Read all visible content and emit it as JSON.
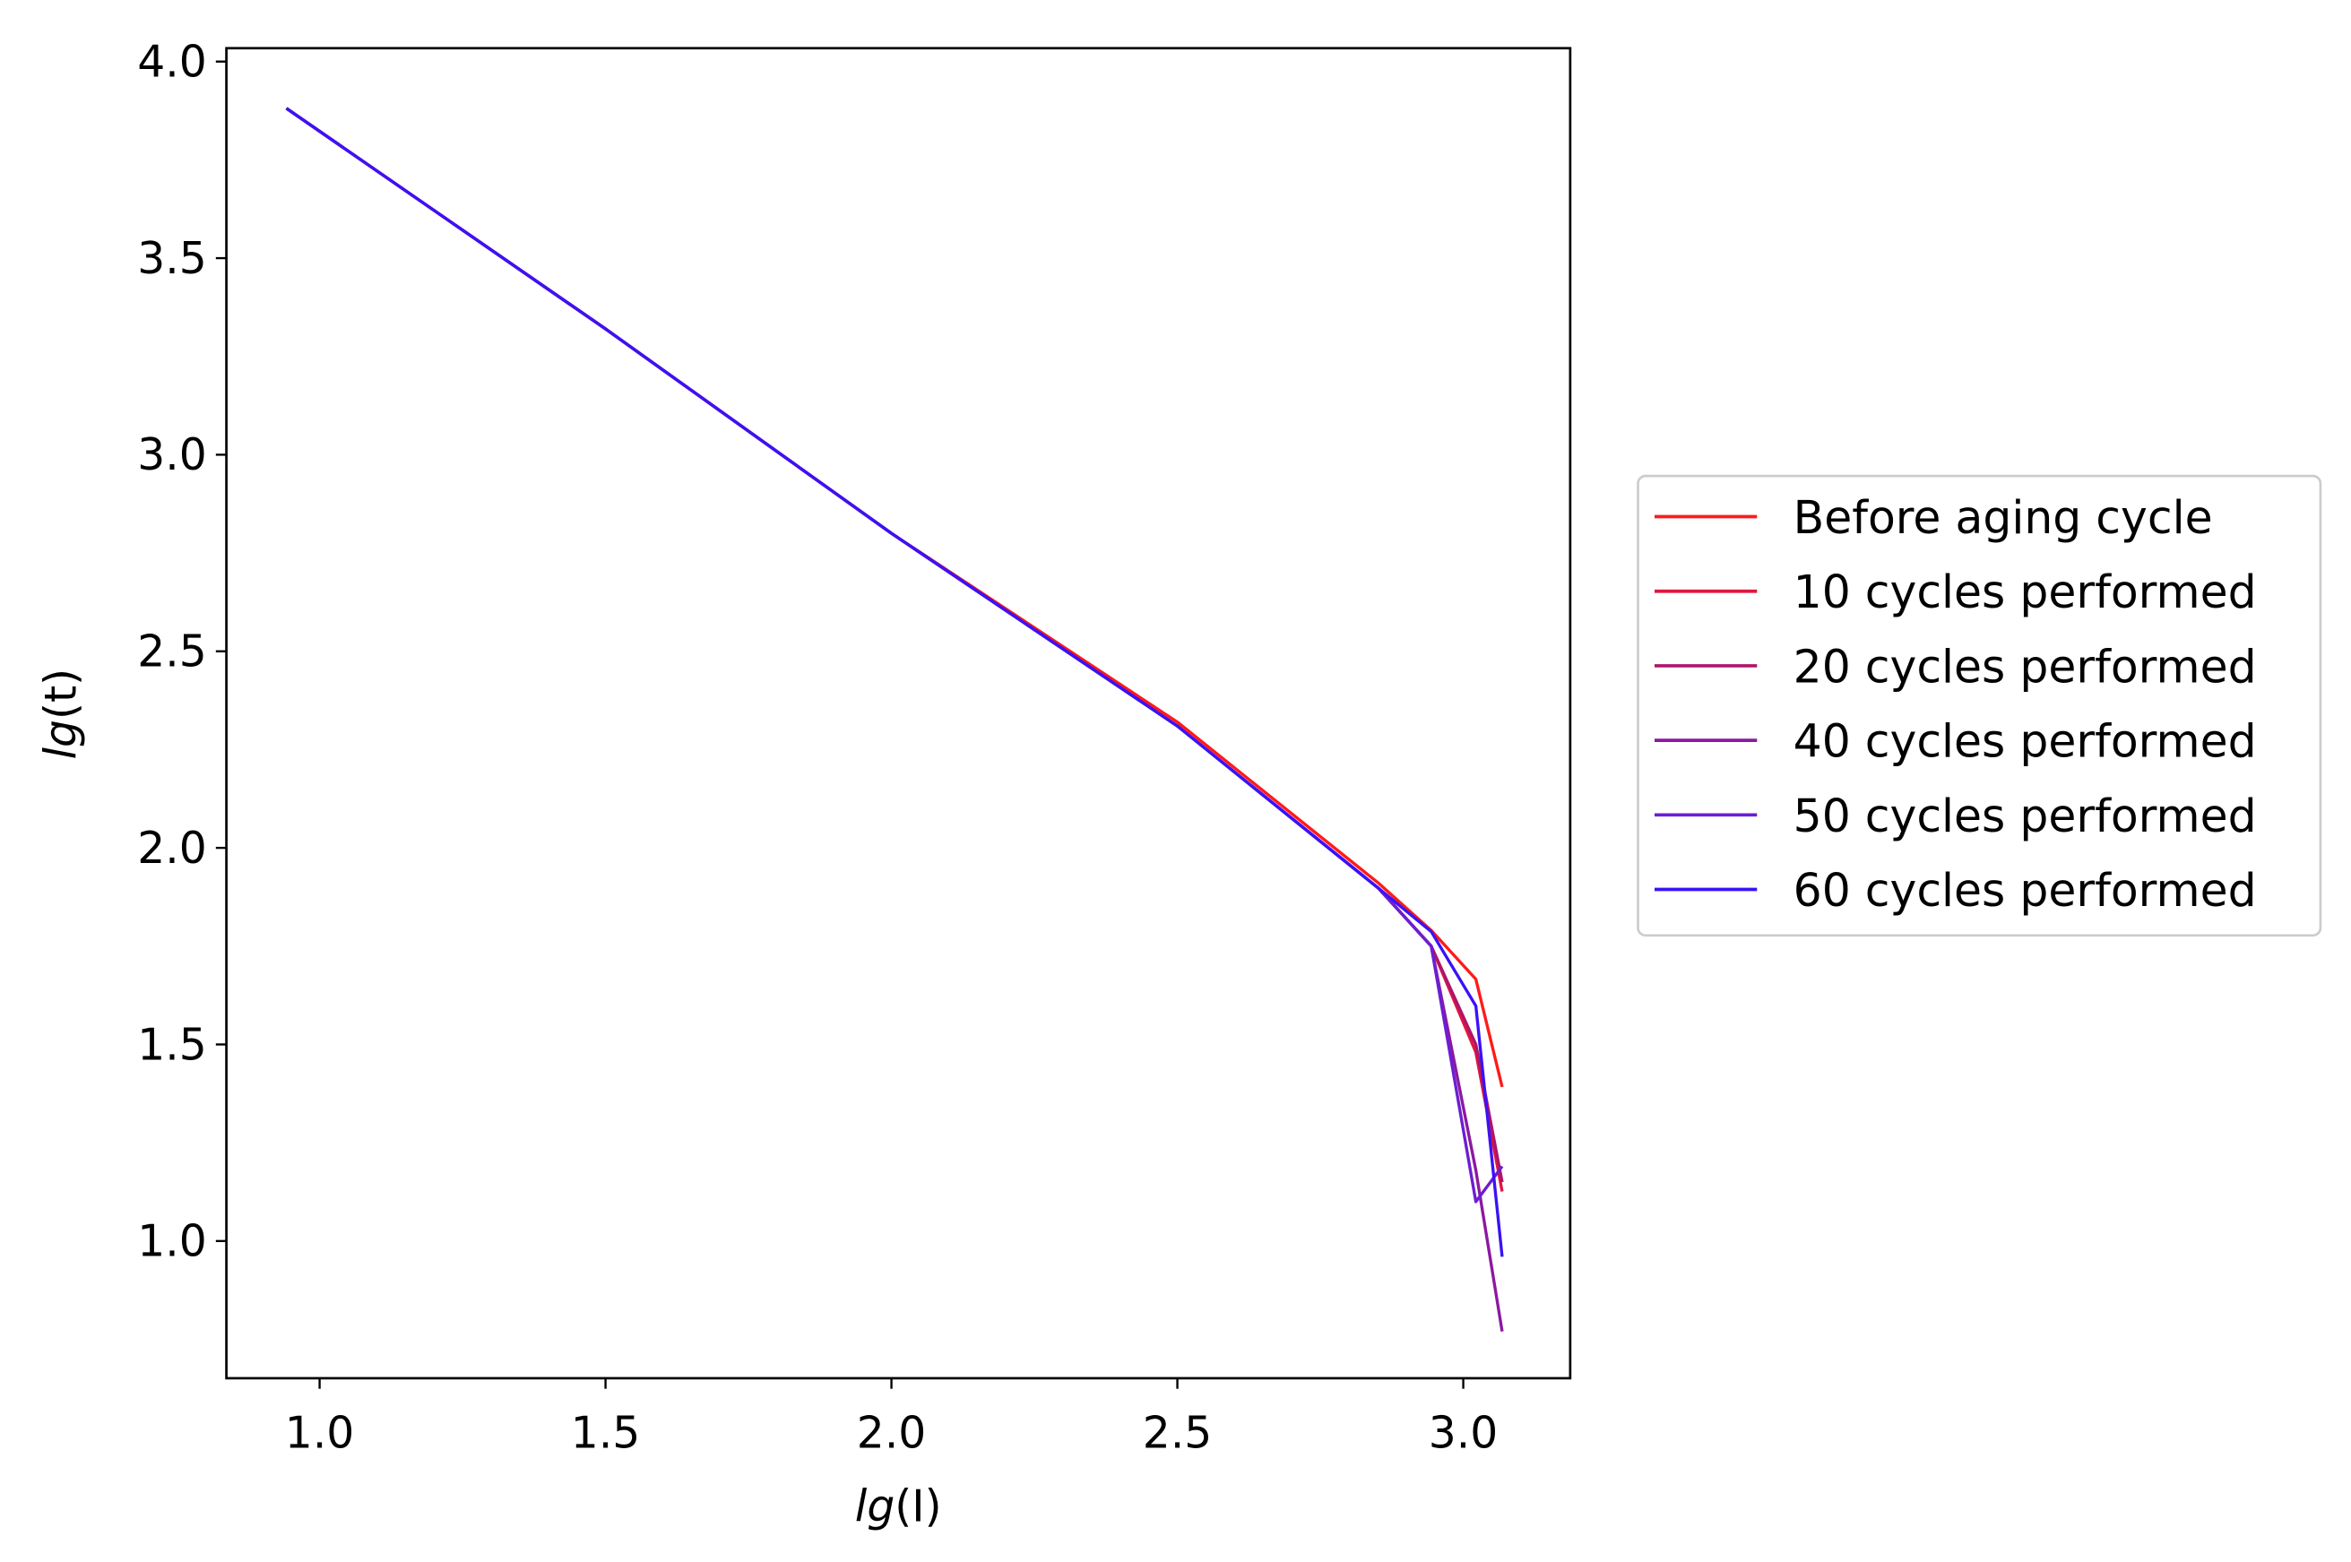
{
  "chart_data": {
    "type": "line",
    "title": "",
    "xlabel_prefix": "lg",
    "xlabel_var": "(I)",
    "ylabel_prefix": "lg",
    "ylabel_var": "(t)",
    "xlim": [
      0.837,
      3.187
    ],
    "ylim": [
      0.651,
      4.034
    ],
    "xticks": [
      1.0,
      1.5,
      2.0,
      2.5,
      3.0
    ],
    "xtick_labels": [
      "1.0",
      "1.5",
      "2.0",
      "2.5",
      "3.0"
    ],
    "yticks": [
      1.0,
      1.5,
      2.0,
      2.5,
      3.0,
      3.5,
      4.0
    ],
    "ytick_labels": [
      "1.0",
      "1.5",
      "2.0",
      "2.5",
      "3.0",
      "3.5",
      "4.0"
    ],
    "grid": false,
    "legend_position": "right, outside",
    "series": [
      {
        "name": "Before aging cycle",
        "color": "#ff1a1a",
        "x": [
          0.942,
          1.5,
          2.0,
          2.5,
          2.852,
          2.944,
          3.022,
          3.068
        ],
        "y": [
          3.881,
          3.32,
          2.8,
          2.32,
          1.91,
          1.79,
          1.666,
          1.392
        ]
      },
      {
        "name": "10 cycles performed",
        "color": "#e0173f",
        "x": [
          0.942,
          1.5,
          2.0,
          2.5,
          2.852,
          2.944,
          3.022,
          3.068
        ],
        "y": [
          3.881,
          3.32,
          2.8,
          2.31,
          1.897,
          1.75,
          1.48,
          1.126
        ]
      },
      {
        "name": "20 cycles performed",
        "color": "#b0146a",
        "x": [
          0.942,
          1.5,
          2.0,
          2.5,
          2.852,
          2.944,
          3.022,
          3.068
        ],
        "y": [
          3.881,
          3.32,
          2.8,
          2.31,
          1.897,
          1.75,
          1.5,
          1.15
        ]
      },
      {
        "name": "40 cycles performed",
        "color": "#8c18a2",
        "x": [
          0.942,
          1.5,
          2.0,
          2.5,
          2.852,
          2.944,
          3.022,
          3.068
        ],
        "y": [
          3.881,
          3.32,
          2.8,
          2.31,
          1.897,
          1.75,
          1.18,
          0.77
        ]
      },
      {
        "name": "50 cycles performed",
        "color": "#6c1ed2",
        "x": [
          0.942,
          1.5,
          2.0,
          2.5,
          2.852,
          2.944,
          3.022,
          3.068
        ],
        "y": [
          3.881,
          3.32,
          2.8,
          2.31,
          1.897,
          1.75,
          1.1,
          1.19
        ]
      },
      {
        "name": "60 cycles performed",
        "color": "#3a12f5",
        "x": [
          0.942,
          1.5,
          2.0,
          2.5,
          2.852,
          2.944,
          3.022,
          3.068
        ],
        "y": [
          3.881,
          3.32,
          2.8,
          2.31,
          1.897,
          1.787,
          1.598,
          0.96
        ]
      }
    ]
  }
}
